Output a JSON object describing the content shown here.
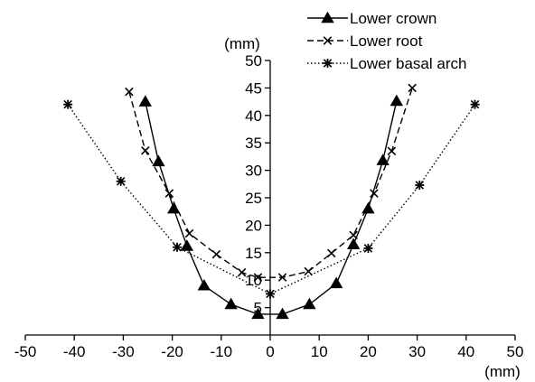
{
  "chart_data": {
    "type": "line",
    "x_unit": "(mm)",
    "y_unit": "(mm)",
    "xlim": [
      -50,
      50
    ],
    "ylim": [
      0,
      50
    ],
    "x_ticks": [
      "-50",
      "-40",
      "-30",
      "-20",
      "-10",
      "0",
      "10",
      "20",
      "30",
      "40",
      "50"
    ],
    "y_ticks": [
      "5",
      "10",
      "15",
      "20",
      "25",
      "30",
      "35",
      "40",
      "45",
      "50"
    ],
    "x_tick_values": [
      -50,
      -40,
      -30,
      -20,
      -10,
      0,
      10,
      20,
      30,
      40,
      50
    ],
    "y_tick_values": [
      5,
      10,
      15,
      20,
      25,
      30,
      35,
      40,
      45,
      50
    ],
    "grid": false,
    "legend_position": "top-right",
    "series": [
      {
        "name": "Lower crown",
        "line_style": "solid",
        "marker": "triangle",
        "color": "#000000",
        "points": [
          [
            -25.5,
            42.5
          ],
          [
            -22.8,
            31.6
          ],
          [
            -19.7,
            23.0
          ],
          [
            -17.0,
            16.2
          ],
          [
            -13.5,
            9.0
          ],
          [
            -8.0,
            5.6
          ],
          [
            -2.5,
            3.8
          ],
          [
            2.5,
            3.8
          ],
          [
            8.0,
            5.6
          ],
          [
            13.5,
            9.4
          ],
          [
            17.0,
            16.5
          ],
          [
            20.0,
            23.0
          ],
          [
            23.0,
            31.8
          ],
          [
            25.8,
            42.6
          ]
        ]
      },
      {
        "name": "Lower root",
        "line_style": "dashed",
        "marker": "x",
        "color": "#000000",
        "points": [
          [
            -28.8,
            44.3
          ],
          [
            -25.5,
            33.6
          ],
          [
            -20.6,
            25.8
          ],
          [
            -16.5,
            18.5
          ],
          [
            -11.0,
            14.7
          ],
          [
            -5.8,
            11.4
          ],
          [
            -2.5,
            10.5
          ],
          [
            2.5,
            10.5
          ],
          [
            7.8,
            11.6
          ],
          [
            12.5,
            14.9
          ],
          [
            17.0,
            18.2
          ],
          [
            21.2,
            25.8
          ],
          [
            24.8,
            33.5
          ],
          [
            29.0,
            45.0
          ]
        ]
      },
      {
        "name": "Lower basal arch",
        "line_style": "dotted",
        "marker": "asterisk",
        "color": "#000000",
        "points": [
          [
            -41.3,
            42.0
          ],
          [
            -30.5,
            28.0
          ],
          [
            -19.0,
            16.0
          ],
          [
            0.0,
            7.5
          ],
          [
            20.0,
            15.8
          ],
          [
            30.5,
            27.3
          ],
          [
            41.8,
            42.0
          ]
        ]
      }
    ]
  }
}
